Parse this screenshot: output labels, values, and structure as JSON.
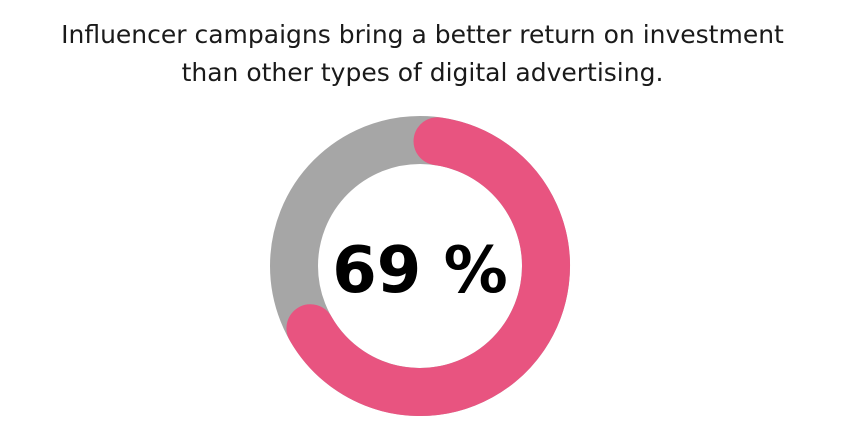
{
  "chart_data": {
    "type": "pie",
    "variant": "donut",
    "title_lines": [
      "Influencer campaigns bring a better return on investment",
      "than other types of digital advertising."
    ],
    "value": 69,
    "center_label": "69 %",
    "ylim": [
      0,
      100
    ],
    "colors": {
      "value": "#E85480",
      "remainder": "#A6A6A6"
    }
  }
}
